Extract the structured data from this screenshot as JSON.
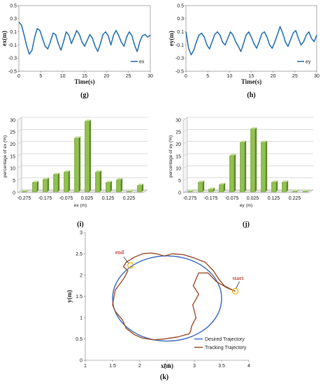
{
  "chart_data": [
    {
      "type": "line",
      "panel_label": "(g)",
      "xlabel": "Time(s)",
      "ylabel": "ex(m)",
      "xlim": [
        0,
        30
      ],
      "ylim": [
        -0.5,
        0.5
      ],
      "xticks": [
        "0",
        "5",
        "10",
        "15",
        "20",
        "25",
        "30"
      ],
      "yticks": [
        "0.5",
        "0.3",
        "0.1",
        "-0.1",
        "-0.3",
        "-0.5"
      ],
      "legend": "ex",
      "legend_position": "bottom-right",
      "color": "#2e75b6",
      "series": [
        {
          "name": "ex",
          "x": [
            0,
            0.6,
            1.2,
            1.8,
            2.4,
            3.0,
            3.6,
            4.2,
            4.8,
            5.4,
            6.0,
            6.6,
            7.2,
            7.8,
            8.4,
            9.0,
            9.6,
            10.2,
            10.8,
            11.4,
            12.0,
            12.6,
            13.2,
            13.8,
            14.4,
            15.0,
            15.6,
            16.2,
            16.8,
            17.4,
            18.0,
            18.6,
            19.2,
            19.8,
            20.4,
            21.0,
            21.6,
            22.2,
            22.8,
            23.4,
            24.0,
            24.6,
            25.2,
            25.8,
            26.4,
            27.0,
            27.6,
            28.2,
            28.8,
            29.4,
            30.0
          ],
          "y": [
            0.25,
            0.2,
            0.05,
            -0.12,
            -0.24,
            -0.18,
            0.02,
            0.15,
            0.12,
            0.0,
            -0.12,
            -0.16,
            -0.05,
            0.08,
            0.06,
            -0.08,
            -0.18,
            -0.05,
            0.1,
            0.05,
            -0.08,
            0.02,
            0.12,
            0.06,
            -0.05,
            -0.12,
            -0.03,
            0.06,
            0.0,
            -0.12,
            -0.2,
            -0.08,
            0.06,
            0.1,
            0.04,
            -0.1,
            0.05,
            0.12,
            0.04,
            -0.06,
            -0.12,
            0.02,
            0.1,
            0.04,
            -0.1,
            -0.2,
            -0.05,
            0.04,
            0.06,
            0.02,
            0.05
          ]
        }
      ]
    },
    {
      "type": "line",
      "panel_label": "(h)",
      "xlabel": "Time(s)",
      "ylabel": "ey(m)",
      "xlim": [
        0,
        30
      ],
      "ylim": [
        -0.5,
        0.5
      ],
      "xticks": [
        "0",
        "5",
        "10",
        "15",
        "20",
        "25",
        "30"
      ],
      "yticks": [
        "0.5",
        "0.3",
        "0.1",
        "-0.1",
        "-0.3",
        "-0.5"
      ],
      "legend": "ey",
      "legend_position": "bottom-right",
      "color": "#2e75b6",
      "series": [
        {
          "name": "ey",
          "x": [
            0,
            0.6,
            1.2,
            1.8,
            2.4,
            3.0,
            3.6,
            4.2,
            4.8,
            5.4,
            6.0,
            6.6,
            7.2,
            7.8,
            8.4,
            9.0,
            9.6,
            10.2,
            10.8,
            11.4,
            12.0,
            12.6,
            13.2,
            13.8,
            14.4,
            15.0,
            15.6,
            16.2,
            16.8,
            17.4,
            18.0,
            18.6,
            19.2,
            19.8,
            20.4,
            21.0,
            21.6,
            22.2,
            22.8,
            23.4,
            24.0,
            24.6,
            25.2,
            25.8,
            26.4,
            27.0,
            27.6,
            28.2,
            28.8,
            29.4,
            30.0
          ],
          "y": [
            0.1,
            -0.15,
            -0.25,
            -0.18,
            -0.05,
            0.05,
            0.08,
            0.02,
            -0.1,
            -0.16,
            -0.05,
            0.06,
            0.1,
            0.05,
            -0.06,
            -0.1,
            0.0,
            0.1,
            0.05,
            -0.05,
            -0.12,
            -0.2,
            -0.08,
            0.05,
            0.1,
            0.02,
            -0.08,
            -0.15,
            -0.05,
            0.07,
            0.1,
            0.02,
            -0.1,
            -0.15,
            -0.05,
            0.06,
            0.18,
            0.08,
            -0.05,
            -0.12,
            -0.02,
            0.08,
            0.12,
            0.0,
            -0.1,
            -0.05,
            0.05,
            0.1,
            0.0,
            -0.05,
            0.05
          ]
        }
      ]
    },
    {
      "type": "bar",
      "panel_label": "(i)",
      "xlabel": "ex (m)",
      "ylabel": "percentage of ex (%)",
      "ylim": [
        0,
        30
      ],
      "yticks": [
        "0",
        "5",
        "10",
        "15",
        "20",
        "25",
        "30"
      ],
      "xtick_labels": [
        "-0.275",
        "-0.175",
        "-0.075",
        "0.025",
        "0.125",
        "0.225"
      ],
      "color": "#92c050",
      "values": [
        0.4,
        4.2,
        5.5,
        7.5,
        8.5,
        22.5,
        29.5,
        8.5,
        4.2,
        5.3,
        0.4,
        3.0
      ]
    },
    {
      "type": "bar",
      "panel_label": "(j)",
      "xlabel": "ey (m)",
      "ylabel": "percentage of ey (%)",
      "ylim": [
        0,
        30
      ],
      "yticks": [
        "0",
        "5",
        "10",
        "15",
        "20",
        "25",
        "30"
      ],
      "xtick_labels": [
        "-0.275",
        "-0.175",
        "-0.075",
        "0.025",
        "0.125",
        "0.225"
      ],
      "color": "#92c050",
      "values": [
        0.4,
        4.3,
        1.4,
        3.3,
        15.3,
        20.8,
        26.3,
        20.8,
        4.3,
        4.3,
        0.4,
        0.4
      ]
    },
    {
      "type": "line",
      "panel_label": "(k)",
      "xlabel": "x(m)",
      "ylabel": "y(m)",
      "xlim": [
        1,
        4
      ],
      "ylim": [
        0,
        3
      ],
      "xticks": [
        "1",
        "1.5",
        "2",
        "2.5",
        "3",
        "3.5",
        "4"
      ],
      "yticks": [
        "0",
        "0.5",
        "1",
        "1.5",
        "2",
        "2.5",
        "3"
      ],
      "legend_position": "bottom-right",
      "annotations": {
        "start": "start",
        "end": "end"
      },
      "desired": {
        "name": "Desired Trajectory",
        "color": "#4472c4",
        "center": [
          2.5,
          1.45
        ],
        "radius_x": 1.0,
        "radius_y": 1.0
      },
      "tracking": {
        "name": "Tracking Trajectory",
        "color": "#a0522d",
        "x": [
          3.75,
          3.6,
          3.4,
          3.25,
          3.08,
          2.98,
          3.08,
          2.97,
          3.03,
          2.95,
          2.93,
          2.9,
          2.7,
          2.45,
          2.25,
          2.05,
          1.9,
          1.75,
          1.68,
          1.55,
          1.5,
          1.52,
          1.55,
          1.65,
          1.72,
          1.78,
          1.7,
          1.75,
          1.9,
          2.05,
          2.2,
          2.3,
          2.45,
          2.6,
          2.8,
          3.0,
          3.2,
          3.35,
          3.45,
          3.55,
          3.7,
          3.75
        ],
        "y": [
          1.62,
          1.7,
          1.85,
          2.05,
          2.05,
          1.75,
          1.55,
          1.3,
          1.0,
          0.8,
          0.67,
          0.62,
          0.55,
          0.5,
          0.48,
          0.52,
          0.6,
          0.75,
          0.95,
          1.15,
          1.3,
          1.45,
          1.65,
          1.82,
          1.95,
          2.1,
          2.2,
          2.3,
          2.42,
          2.5,
          2.52,
          2.5,
          2.45,
          2.5,
          2.48,
          2.4,
          2.3,
          2.1,
          1.9,
          1.75,
          1.65,
          1.62
        ]
      }
    }
  ]
}
